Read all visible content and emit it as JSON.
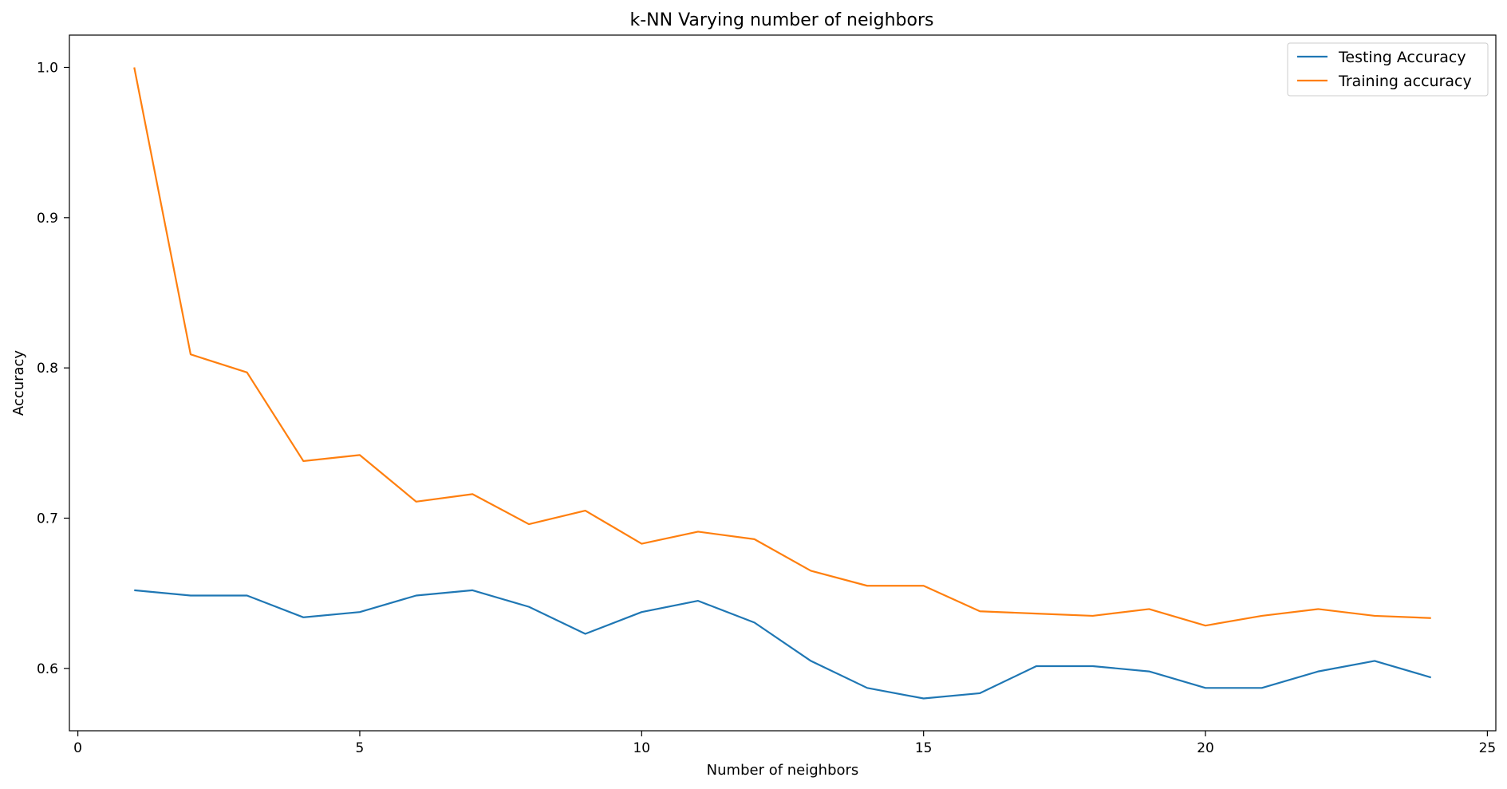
{
  "chart_data": {
    "type": "line",
    "title": "k-NN Varying number of neighbors",
    "xlabel": "Number of neighbors",
    "ylabel": "Accuracy",
    "xlim": [
      -0.15,
      25.15
    ],
    "ylim": [
      0.5585,
      1.0215
    ],
    "xticks": [
      0,
      5,
      10,
      15,
      20,
      25
    ],
    "yticks": [
      0.6,
      0.7,
      0.8,
      0.9,
      1.0
    ],
    "xtick_labels": [
      "0",
      "5",
      "10",
      "15",
      "20",
      "25"
    ],
    "ytick_labels": [
      "0.6",
      "0.7",
      "0.8",
      "0.9",
      "1.0"
    ],
    "grid": false,
    "legend_position": "top-right",
    "x": [
      1,
      2,
      3,
      4,
      5,
      6,
      7,
      8,
      9,
      10,
      11,
      12,
      13,
      14,
      15,
      16,
      17,
      18,
      19,
      20,
      21,
      22,
      23,
      24
    ],
    "series": [
      {
        "name": "Testing Accuracy",
        "color": "#1f77b4",
        "values": [
          0.652,
          0.6485,
          0.6485,
          0.634,
          0.6375,
          0.6485,
          0.652,
          0.641,
          0.623,
          0.6375,
          0.645,
          0.6305,
          0.605,
          0.587,
          0.58,
          0.5835,
          0.6015,
          0.6015,
          0.598,
          0.587,
          0.587,
          0.598,
          0.605,
          0.594
        ]
      },
      {
        "name": "Training accuracy",
        "color": "#ff7f0e",
        "values": [
          1.0,
          0.809,
          0.797,
          0.738,
          0.742,
          0.711,
          0.716,
          0.696,
          0.705,
          0.683,
          0.691,
          0.686,
          0.665,
          0.655,
          0.655,
          0.638,
          0.6365,
          0.635,
          0.6395,
          0.6285,
          0.635,
          0.6395,
          0.635,
          0.6335
        ]
      }
    ]
  }
}
